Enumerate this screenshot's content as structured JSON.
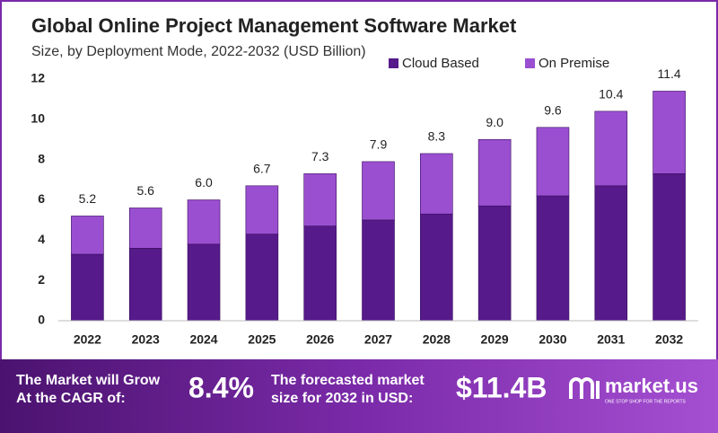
{
  "chart_data": {
    "type": "stacked_bar",
    "title": "Global Online Project Management Software Market",
    "subtitle": "Size, by Deployment Mode, 2022-2032 (USD Billion)",
    "categories": [
      "2022",
      "2023",
      "2024",
      "2025",
      "2026",
      "2027",
      "2028",
      "2029",
      "2030",
      "2031",
      "2032"
    ],
    "series": [
      {
        "name": "Cloud Based",
        "color": "#561a8a",
        "values": [
          3.3,
          3.6,
          3.8,
          4.3,
          4.7,
          5.0,
          5.3,
          5.7,
          6.2,
          6.7,
          7.3
        ]
      },
      {
        "name": "On Premise",
        "color": "#9a4fd0",
        "values": [
          1.9,
          2.0,
          2.2,
          2.4,
          2.6,
          2.9,
          3.0,
          3.3,
          3.4,
          3.7,
          4.1
        ]
      }
    ],
    "totals": [
      5.2,
      5.6,
      6.0,
      6.7,
      7.3,
      7.9,
      8.3,
      9.0,
      9.6,
      10.4,
      11.4
    ],
    "total_labels": [
      "5.2",
      "5.6",
      "6.0",
      "6.7",
      "7.3",
      "7.9",
      "8.3",
      "9.0",
      "9.6",
      "10.4",
      "11.4"
    ],
    "ylim": [
      0,
      12
    ],
    "yticks": [
      0,
      2,
      4,
      6,
      8,
      10,
      12
    ],
    "grid": false,
    "legend": "top"
  },
  "banner": {
    "cagr_lines": [
      "The Market will Grow",
      "At the CAGR of:"
    ],
    "cagr": "8.4%",
    "forecast_lines": [
      "The forecasted market",
      "size for 2032 in USD:"
    ],
    "forecast": "$11.4B",
    "brand": "market.us",
    "tagline": "ONE STOP SHOP FOR THE REPORTS"
  }
}
